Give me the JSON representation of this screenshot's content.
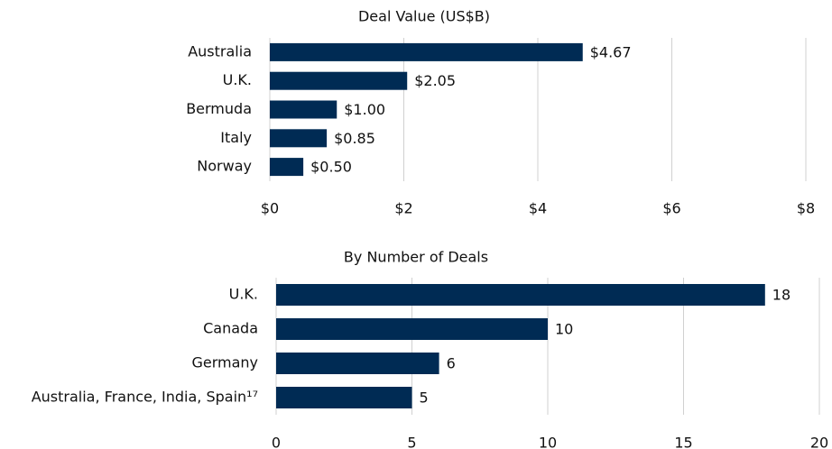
{
  "chart_data": [
    {
      "type": "bar",
      "orientation": "horizontal",
      "title": "Deal Value (US$B)",
      "categories": [
        "Australia",
        "U.K.",
        "Bermuda",
        "Italy",
        "Norway"
      ],
      "values": [
        4.67,
        2.05,
        1.0,
        0.85,
        0.5
      ],
      "value_labels": [
        "$4.67",
        "$2.05",
        "$1.00",
        "$0.85",
        "$0.50"
      ],
      "color": "#002b54",
      "xlim": [
        0,
        8
      ],
      "xticks": [
        {
          "value": 0,
          "label": "$0"
        },
        {
          "value": 2,
          "label": "$2"
        },
        {
          "value": 4,
          "label": "$4"
        },
        {
          "value": 6,
          "label": "$6"
        },
        {
          "value": 8,
          "label": "$8"
        }
      ],
      "grid": true
    },
    {
      "type": "bar",
      "orientation": "horizontal",
      "title": "By Number of Deals",
      "categories": [
        "U.K.",
        "Canada",
        "Germany",
        "Australia, France, India, Spain¹⁷"
      ],
      "values": [
        18,
        10,
        6,
        5
      ],
      "color": "#002b54",
      "xlim": [
        0,
        20
      ],
      "xticks": [
        0,
        5,
        10,
        15,
        20
      ],
      "grid": true
    }
  ]
}
